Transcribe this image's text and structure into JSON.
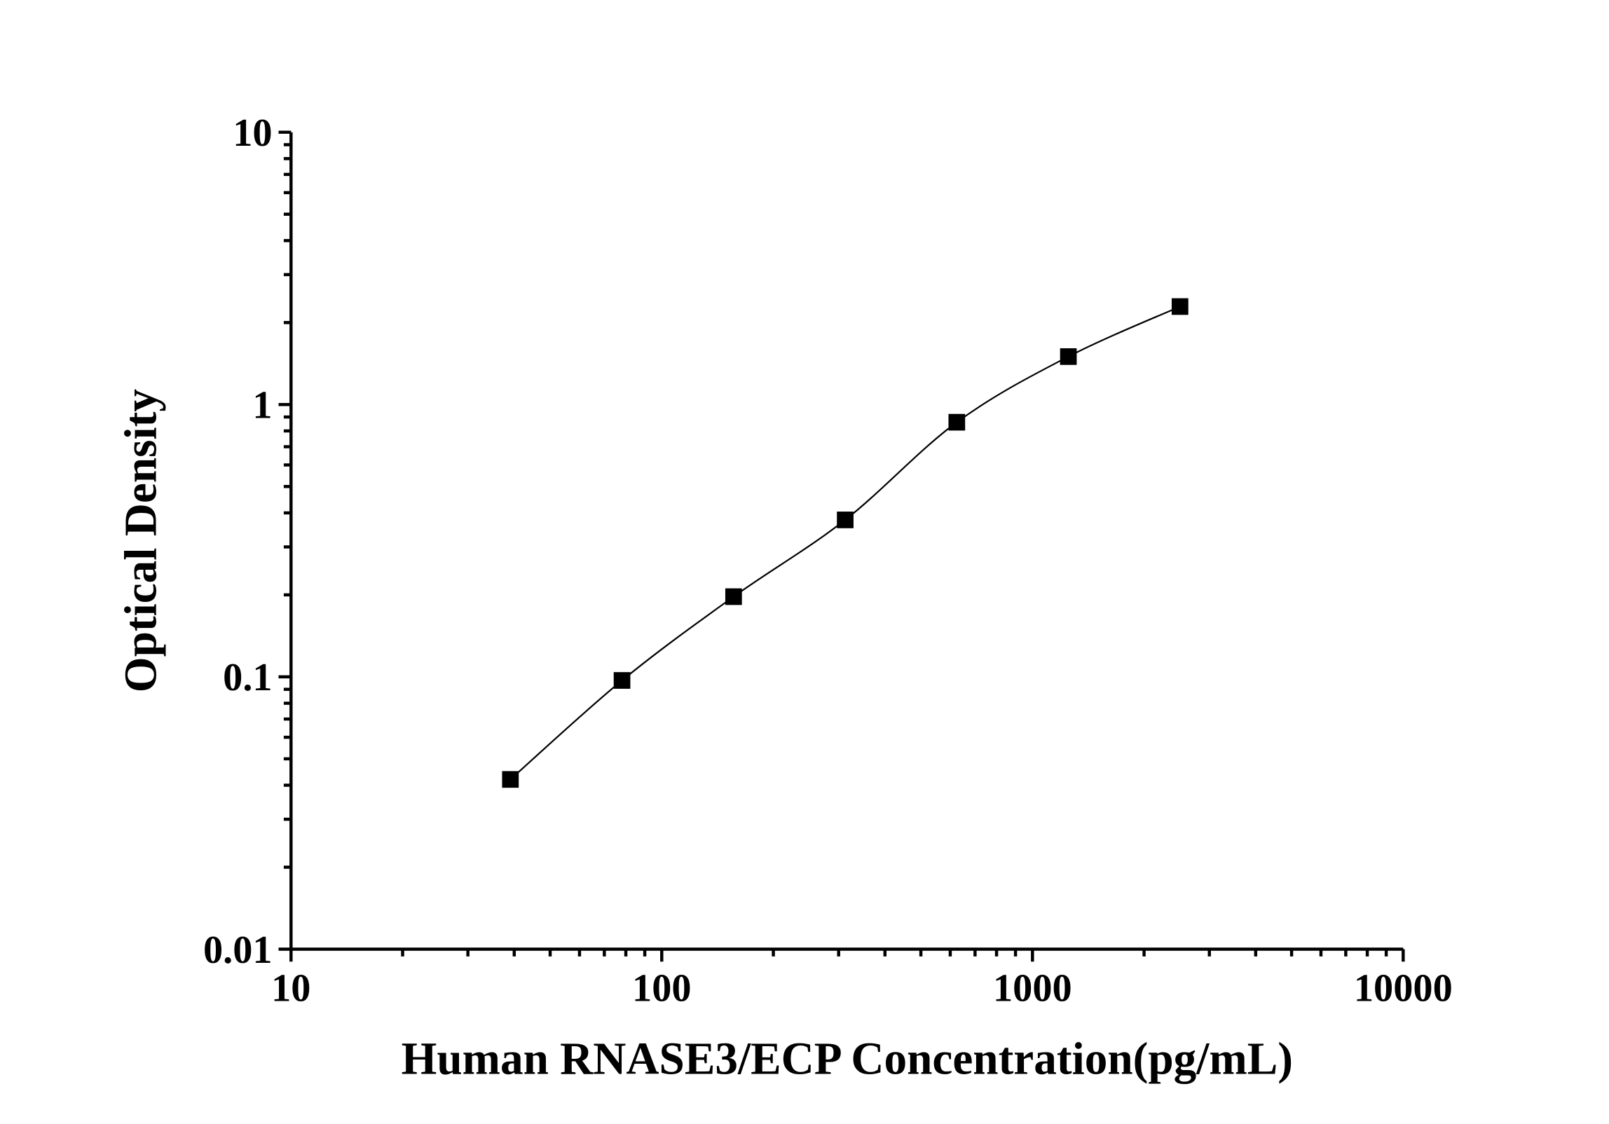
{
  "chart_data": {
    "type": "scatter",
    "title": "",
    "xlabel": "Human RNASE3/ECP Concentration(pg/mL)",
    "ylabel": "Optical Density",
    "xscale": "log",
    "yscale": "log",
    "xlim": [
      10,
      10000
    ],
    "ylim": [
      0.01,
      10
    ],
    "xticks": [
      "10",
      "100",
      "1000",
      "10000"
    ],
    "yticks": [
      "0.01",
      "0.1",
      "1",
      "10"
    ],
    "grid": false,
    "marker": "square",
    "fit_line": true,
    "colors": {
      "marker": "#000000",
      "line": "#000000"
    },
    "series": [
      {
        "x": [
          39.06,
          78.13,
          156.25,
          312.5,
          625,
          1250,
          2500
        ],
        "y": [
          0.042,
          0.097,
          0.197,
          0.377,
          0.861,
          1.5,
          2.29
        ]
      }
    ]
  }
}
